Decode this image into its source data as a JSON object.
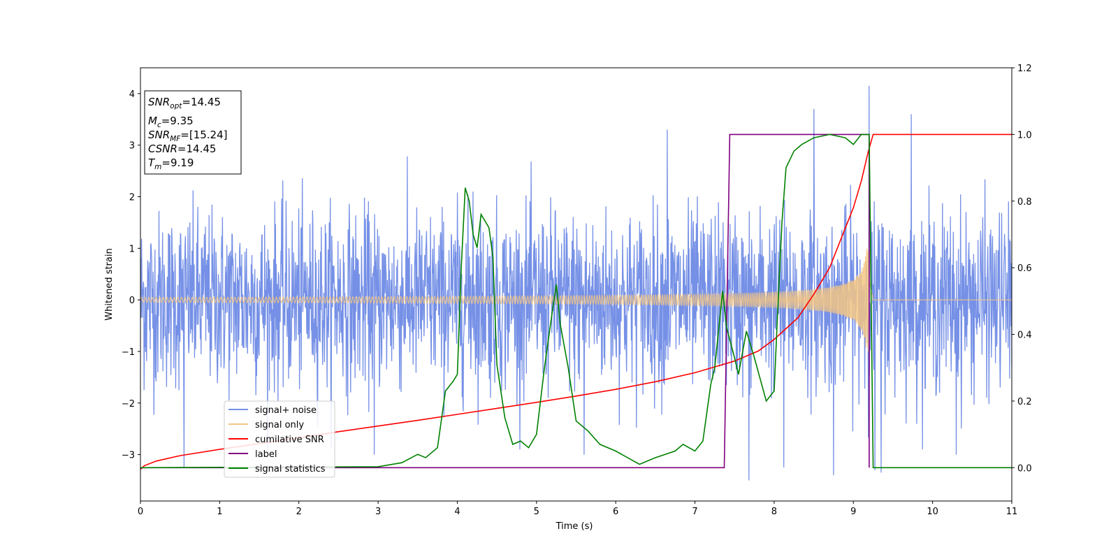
{
  "chart_data": {
    "type": "line",
    "title": "",
    "xlabel": "Time (s)",
    "ylabel": "Whitened strain",
    "y2label": "",
    "xlim": [
      0,
      11
    ],
    "ylim": [
      -3.9,
      4.5
    ],
    "y2lim": [
      -0.1,
      1.2
    ],
    "xticks": [
      0,
      1,
      2,
      3,
      4,
      5,
      6,
      7,
      8,
      9,
      10,
      11
    ],
    "yticks": [
      -3,
      -2,
      -1,
      0,
      1,
      2,
      3,
      4
    ],
    "y2ticks": [
      0.0,
      0.2,
      0.4,
      0.6,
      0.8,
      1.0,
      1.2
    ],
    "grid": false,
    "legend_position": "lower-left",
    "annotation": {
      "lines": [
        {
          "base": "SNR",
          "sub": "opt",
          "value": "=14.45"
        },
        {
          "base": "M",
          "sub": "c",
          "value": "=9.35"
        },
        {
          "base": "SNR",
          "sub": "MF",
          "value": "=[15.24]"
        },
        {
          "base": "CSNR",
          "sub": "",
          "value": "=14.45"
        },
        {
          "base": "T",
          "sub": "m",
          "value": "=9.19"
        }
      ]
    },
    "noise": {
      "band_1sigma": 1.0,
      "spike_peaks": [
        {
          "x": 0.55,
          "y": -3.25
        },
        {
          "x": 2.95,
          "y": -3.0
        },
        {
          "x": 4.2,
          "y": 2.1
        },
        {
          "x": 5.6,
          "y": -3.0
        },
        {
          "x": 6.65,
          "y": 3.3
        },
        {
          "x": 7.68,
          "y": -3.5
        },
        {
          "x": 8.12,
          "y": -3.25
        },
        {
          "x": 8.5,
          "y": 3.7
        },
        {
          "x": 8.75,
          "y": -3.4
        },
        {
          "x": 9.2,
          "y": 4.15
        },
        {
          "x": 9.27,
          "y": -3.3
        },
        {
          "x": 9.35,
          "y": -3.35
        },
        {
          "x": 9.73,
          "y": 3.6
        },
        {
          "x": 10.3,
          "y": -3.0
        }
      ]
    },
    "chirp": {
      "start_amplitude": 0.05,
      "merger_time": 9.19,
      "peak_amplitude": 1.0,
      "end_time": 9.25
    },
    "series": [
      {
        "name": "signal+ noise",
        "axis": "left",
        "color": "#7590e6"
      },
      {
        "name": "signal only",
        "axis": "left",
        "color": "#f3c584"
      },
      {
        "name": "cumilative SNR",
        "axis": "right",
        "color": "#ff0000",
        "x": [
          0,
          0.05,
          0.2,
          0.5,
          1,
          1.5,
          2,
          2.5,
          3,
          3.5,
          4,
          4.5,
          5,
          5.5,
          6,
          6.5,
          7,
          7.5,
          7.8,
          8,
          8.3,
          8.5,
          8.7,
          8.9,
          9.0,
          9.1,
          9.19,
          9.25,
          11
        ],
        "y": [
          -0.005,
          0.006,
          0.02,
          0.036,
          0.055,
          0.072,
          0.09,
          0.108,
          0.125,
          0.142,
          0.16,
          0.178,
          0.196,
          0.215,
          0.235,
          0.258,
          0.285,
          0.32,
          0.35,
          0.385,
          0.45,
          0.52,
          0.6,
          0.72,
          0.78,
          0.86,
          0.95,
          1.0,
          1.0
        ]
      },
      {
        "name": "label",
        "axis": "right",
        "color": "#800080",
        "x": [
          0,
          7.37,
          7.44,
          9.2,
          9.2
        ],
        "y": [
          0.0,
          0.0,
          1.0,
          1.0,
          0.0
        ]
      },
      {
        "name": "signal statistics",
        "axis": "right",
        "color": "#008000",
        "x": [
          0,
          3.0,
          3.3,
          3.5,
          3.6,
          3.75,
          3.85,
          3.95,
          4.0,
          4.05,
          4.1,
          4.15,
          4.2,
          4.25,
          4.3,
          4.4,
          4.45,
          4.5,
          4.6,
          4.7,
          4.8,
          4.9,
          5.0,
          5.1,
          5.2,
          5.25,
          5.3,
          5.4,
          5.5,
          5.65,
          5.8,
          6.0,
          6.3,
          6.5,
          6.75,
          6.85,
          7.0,
          7.1,
          7.2,
          7.25,
          7.35,
          7.4,
          7.5,
          7.55,
          7.65,
          7.75,
          7.9,
          8.0,
          8.05,
          8.1,
          8.15,
          8.25,
          8.35,
          8.5,
          8.7,
          8.9,
          9.0,
          9.1,
          9.2,
          9.25,
          11
        ],
        "y": [
          0.0,
          0.003,
          0.015,
          0.04,
          0.03,
          0.06,
          0.23,
          0.26,
          0.28,
          0.6,
          0.84,
          0.8,
          0.7,
          0.66,
          0.76,
          0.72,
          0.63,
          0.31,
          0.15,
          0.07,
          0.08,
          0.06,
          0.1,
          0.3,
          0.47,
          0.55,
          0.43,
          0.3,
          0.14,
          0.11,
          0.07,
          0.05,
          0.01,
          0.03,
          0.05,
          0.07,
          0.05,
          0.08,
          0.25,
          0.3,
          0.53,
          0.42,
          0.33,
          0.28,
          0.41,
          0.33,
          0.2,
          0.23,
          0.5,
          0.74,
          0.9,
          0.95,
          0.97,
          0.99,
          1.0,
          0.99,
          0.97,
          1.0,
          1.0,
          0.0,
          0.0
        ]
      }
    ]
  }
}
